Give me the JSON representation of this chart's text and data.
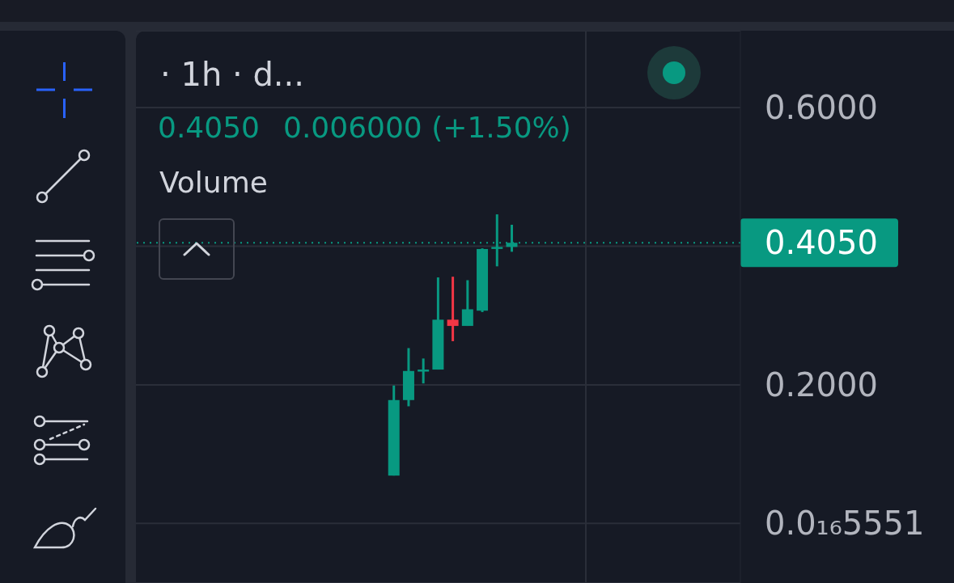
{
  "chart_data": {
    "type": "candlestick",
    "title": "· 1h · d...",
    "annotations": [
      "0.4050",
      "0.006000 (+1.50%)",
      "Volume"
    ],
    "categories": [
      null,
      null,
      null,
      null,
      null,
      null,
      null,
      null,
      null,
      null,
      null,
      null,
      null,
      null,
      null,
      null,
      null,
      null,
      null,
      null,
      null,
      null,
      null,
      null,
      null,
      null,
      null,
      null,
      null,
      null,
      null,
      null,
      null,
      null,
      null,
      null,
      null,
      null,
      null,
      null,
      null
    ],
    "ohlc": [
      null,
      null,
      null,
      null,
      null,
      null,
      null,
      null,
      null,
      null,
      null,
      null,
      null,
      null,
      null,
      null,
      null,
      [
        0.069,
        0.199,
        0.069,
        0.178
      ],
      [
        0.178,
        0.253,
        0.169,
        0.22
      ],
      [
        0.22,
        0.238,
        0.202,
        0.222
      ],
      [
        0.222,
        0.355,
        0.222,
        0.294
      ],
      [
        0.294,
        0.356,
        0.263,
        0.285
      ],
      [
        0.285,
        0.351,
        0.285,
        0.309
      ],
      [
        0.307,
        0.397,
        0.305,
        0.396
      ],
      [
        0.399,
        0.446,
        0.371,
        0.399
      ],
      [
        0.399,
        0.431,
        0.392,
        0.405
      ],
      null,
      null,
      null,
      null,
      null,
      null,
      null,
      null,
      null,
      null,
      null,
      null,
      null,
      null,
      null
    ],
    "colors": [
      null,
      null,
      null,
      null,
      null,
      null,
      null,
      null,
      null,
      null,
      null,
      null,
      null,
      null,
      null,
      null,
      null,
      "#089981",
      "#089981",
      "#089981",
      "#089981",
      "#f23645",
      "#089981",
      "#089981",
      "#089981",
      "#089981",
      null,
      null,
      null,
      null,
      null,
      null,
      null,
      null,
      null,
      null,
      null,
      null,
      null,
      null,
      null
    ],
    "ylim": [
      -0.086,
      0.711
    ],
    "yticks": [
      {
        "value": 5.551e-17,
        "label": "0.0₁₆5551"
      },
      {
        "value": 0.2,
        "label": "0.2000"
      },
      {
        "value": 0.4,
        "label": null
      },
      {
        "value": 0.6,
        "label": "0.6000"
      }
    ],
    "tick_labels": "y",
    "grid": "y",
    "ref_lines": [
      {
        "axis": "y",
        "value": 0.405,
        "label": "0.4050",
        "color": "#089981",
        "line_style": "dotted"
      }
    ]
  }
}
